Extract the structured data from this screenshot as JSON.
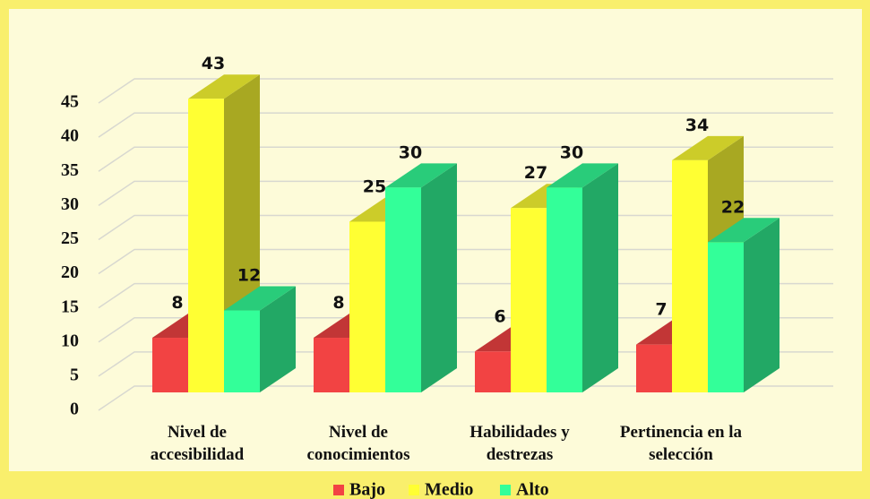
{
  "chart_data": {
    "type": "bar3d",
    "categories": [
      "Nivel de accesibilidad",
      "Nivel de conocimientos",
      "Habilidades y destrezas",
      "Pertinencia en la selección"
    ],
    "series": [
      {
        "name": "Bajo",
        "color": "#f24343",
        "values": [
          8,
          8,
          6,
          7
        ]
      },
      {
        "name": "Medio",
        "color": "#ffff33",
        "values": [
          43,
          25,
          27,
          34
        ]
      },
      {
        "name": "Alto",
        "color": "#33ff99",
        "values": [
          12,
          30,
          30,
          22
        ]
      }
    ],
    "ylim": [
      0,
      45
    ],
    "yticks": [
      0,
      5,
      10,
      15,
      20,
      25,
      30,
      35,
      40,
      45
    ],
    "grid": true,
    "legend": "bottom"
  }
}
